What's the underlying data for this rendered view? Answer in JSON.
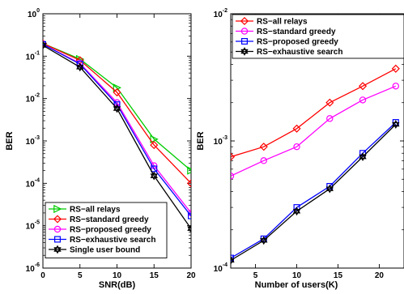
{
  "chart_data": [
    {
      "type": "line",
      "xlabel": "SNR(dB)",
      "ylabel": "BER",
      "xscale": "linear",
      "yscale": "log",
      "xlim": [
        0,
        20
      ],
      "ylim": [
        1e-06,
        1
      ],
      "xticks": [
        0,
        5,
        10,
        15,
        20
      ],
      "yticks": [
        {
          "value": 1,
          "label": "10",
          "exp": "0"
        },
        {
          "value": 0.1,
          "label": "10",
          "exp": "-1"
        },
        {
          "value": 0.01,
          "label": "10",
          "exp": "-2"
        },
        {
          "value": 0.001,
          "label": "10",
          "exp": "-3"
        },
        {
          "value": 0.0001,
          "label": "10",
          "exp": "-4"
        },
        {
          "value": 1e-05,
          "label": "10",
          "exp": "-5"
        },
        {
          "value": 1e-06,
          "label": "10",
          "exp": "-6"
        }
      ],
      "legend_position": "bottom-left",
      "x": [
        0,
        5,
        10,
        15,
        20
      ],
      "series": [
        {
          "name": "RS−all relays",
          "color": "#00cc00",
          "marker": "triangle-right",
          "values": [
            0.2,
            0.085,
            0.018,
            0.0011,
            0.0002
          ]
        },
        {
          "name": "RS−standard greedy",
          "color": "#ff0000",
          "marker": "diamond",
          "values": [
            0.2,
            0.08,
            0.014,
            0.0008,
            0.0001
          ]
        },
        {
          "name": "RS−proposed greedy",
          "color": "#ff00ff",
          "marker": "circle",
          "values": [
            0.19,
            0.068,
            0.008,
            0.00026,
            2e-05
          ]
        },
        {
          "name": "RS−exhaustive search",
          "color": "#0000ff",
          "marker": "square",
          "values": [
            0.19,
            0.065,
            0.0072,
            0.00022,
            1.7e-05
          ]
        },
        {
          "name": "Single user bound",
          "color": "#000000",
          "marker": "hexagram",
          "values": [
            0.18,
            0.055,
            0.0058,
            0.00015,
            8.5e-06
          ]
        }
      ]
    },
    {
      "type": "line",
      "xlabel": "Number of users(K)",
      "ylabel": "BER",
      "xscale": "linear",
      "yscale": "log",
      "xlim": [
        2,
        23
      ],
      "ylim": [
        0.0001,
        0.01
      ],
      "xticks": [
        5,
        10,
        15,
        20
      ],
      "yticks": [
        {
          "value": 0.01,
          "label": "10",
          "exp": "-2"
        },
        {
          "value": 0.001,
          "label": "10",
          "exp": "-3"
        },
        {
          "value": 0.0001,
          "label": "10",
          "exp": "-4"
        }
      ],
      "legend_position": "top-left",
      "x": [
        2,
        6,
        10,
        14,
        18,
        22
      ],
      "series": [
        {
          "name": "RS−all relays",
          "color": "#ff0000",
          "marker": "diamond",
          "values": [
            0.00075,
            0.0009,
            0.00125,
            0.002,
            0.0027,
            0.0037
          ]
        },
        {
          "name": "RS−standard greedy",
          "color": "#ff00ff",
          "marker": "circle",
          "values": [
            0.00053,
            0.0007,
            0.0009,
            0.0015,
            0.0021,
            0.0027
          ]
        },
        {
          "name": "RS−proposed greedy",
          "color": "#0000ff",
          "marker": "square",
          "values": [
            0.00012,
            0.00017,
            0.0003,
            0.00044,
            0.0008,
            0.0014
          ]
        },
        {
          "name": "RS−exhaustive search",
          "color": "#000000",
          "marker": "hexagram",
          "values": [
            0.000115,
            0.000165,
            0.00028,
            0.00042,
            0.00075,
            0.00135
          ]
        }
      ]
    }
  ]
}
